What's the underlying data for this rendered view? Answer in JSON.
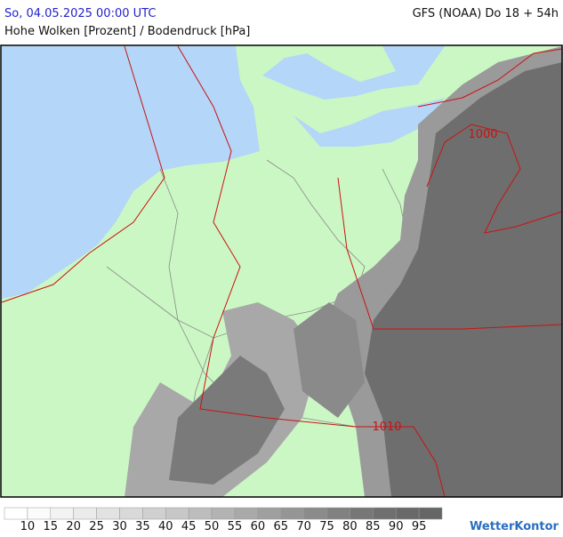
{
  "header": {
    "date": "So, 04.05.2025 00:00 UTC",
    "model": "GFS (NOAA) Do 18 + 54h",
    "title": "Hohe Wolken [Prozent] / Bodendruck [hPa]"
  },
  "map": {
    "isobar_labels": [
      "1000",
      "1010"
    ]
  },
  "legend": {
    "ticks": [
      10,
      15,
      20,
      25,
      30,
      35,
      40,
      45,
      50,
      55,
      60,
      65,
      70,
      75,
      80,
      85,
      90,
      95
    ],
    "colors": [
      "#ffffff",
      "#fbfbfb",
      "#f3f3f3",
      "#ebebeb",
      "#e2e2e2",
      "#d9d9d9",
      "#d0d0d0",
      "#c7c7c7",
      "#bdbdbd",
      "#b3b3b3",
      "#a9a9a9",
      "#9f9f9f",
      "#959595",
      "#8b8b8b",
      "#818181",
      "#777777",
      "#6f6f6f",
      "#696969",
      "#666666"
    ]
  },
  "brand": "WetterKontor"
}
